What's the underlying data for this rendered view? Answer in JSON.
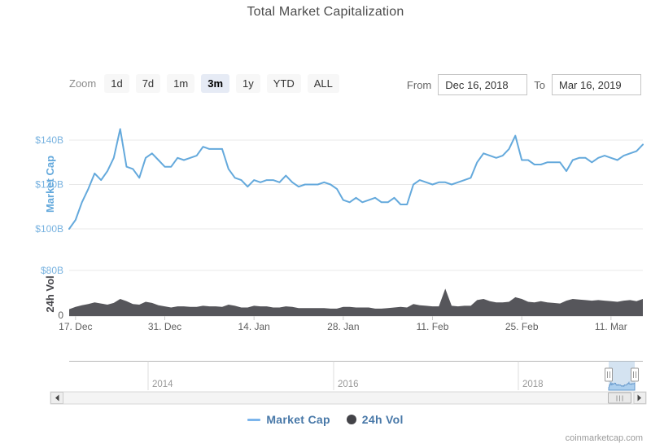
{
  "title": "Total Market Capitalization",
  "toolbar": {
    "zoom_label": "Zoom",
    "zoom_buttons": [
      "1d",
      "7d",
      "1m",
      "3m",
      "1y",
      "YTD",
      "ALL"
    ],
    "zoom_selected": "3m",
    "from_label": "From",
    "from_value": "Dec 16, 2018",
    "to_label": "To",
    "to_value": "Mar 16, 2019"
  },
  "legend": {
    "market_cap": "Market Cap",
    "vol": "24h Vol"
  },
  "attribution": "coinmarketcap.com",
  "colors": {
    "market_cap_line": "#64a9dc",
    "market_cap_axis": "#79b3e0",
    "volume_fill": "#56565b",
    "volume_title": "#45454a",
    "grid": "#e8e8e8",
    "axis_line": "#cccccc",
    "tick_label": "#606060",
    "navigator_year": "#999999",
    "selection_fill": "#aac7e4"
  },
  "chart_data": {
    "type": "line",
    "title": "Total Market Capitalization",
    "x_range": [
      "Dec 16, 2018",
      "Mar 16, 2019"
    ],
    "x_tick_labels": [
      "17. Dec",
      "31. Dec",
      "14. Jan",
      "28. Jan",
      "11. Feb",
      "25. Feb",
      "11. Mar"
    ],
    "x_tick_day_index": [
      1,
      15,
      29,
      43,
      57,
      71,
      85
    ],
    "series": [
      {
        "name": "Market Cap",
        "type": "line",
        "unit": "USD billions",
        "ylabel": "Market Cap",
        "yticks": [
          "$140B",
          "$120B",
          "$100B"
        ],
        "ytick_values": [
          140,
          120,
          100
        ],
        "ylim": [
          97,
          147
        ],
        "values": [
          100,
          104,
          112,
          118,
          125,
          122,
          126,
          132,
          145,
          128,
          127,
          123,
          132,
          134,
          131,
          128,
          128,
          132,
          131,
          132,
          133,
          137,
          136,
          136,
          136,
          127,
          123,
          122,
          119,
          122,
          121,
          122,
          122,
          121,
          124,
          121,
          119,
          120,
          120,
          120,
          121,
          120,
          118,
          113,
          112,
          114,
          112,
          113,
          114,
          112,
          112,
          114,
          111,
          111,
          120,
          122,
          121,
          120,
          121,
          121,
          120,
          121,
          122,
          123,
          130,
          134,
          133,
          132,
          133,
          136,
          142,
          131,
          131,
          129,
          129,
          130,
          130,
          130,
          126,
          131,
          132,
          132,
          130,
          132,
          133,
          132,
          131,
          133,
          134,
          135,
          138
        ]
      },
      {
        "name": "24h Vol",
        "type": "area",
        "unit": "USD billions",
        "ylabel": "24h Vol",
        "yticks": [
          "$80B",
          "0"
        ],
        "ytick_values": [
          80,
          0
        ],
        "ylim": [
          0,
          80
        ],
        "values": [
          12,
          16,
          19,
          21,
          24,
          22,
          20,
          23,
          30,
          26,
          21,
          20,
          25,
          23,
          19,
          17,
          15,
          17,
          17,
          16,
          16,
          18,
          17,
          17,
          16,
          20,
          18,
          15,
          15,
          18,
          17,
          17,
          15,
          15,
          17,
          16,
          14,
          14,
          14,
          14,
          14,
          13,
          13,
          16,
          16,
          15,
          15,
          15,
          13,
          13,
          14,
          15,
          16,
          15,
          21,
          19,
          18,
          17,
          17,
          48,
          18,
          17,
          18,
          18,
          28,
          30,
          26,
          24,
          24,
          25,
          33,
          30,
          25,
          24,
          26,
          24,
          23,
          22,
          27,
          30,
          29,
          28,
          27,
          28,
          27,
          26,
          25,
          27,
          28,
          26,
          30
        ]
      }
    ],
    "navigator": {
      "year_labels": [
        "2014",
        "2016",
        "2018"
      ],
      "selection_range": [
        "Dec 16, 2018",
        "Mar 16, 2019"
      ]
    }
  }
}
